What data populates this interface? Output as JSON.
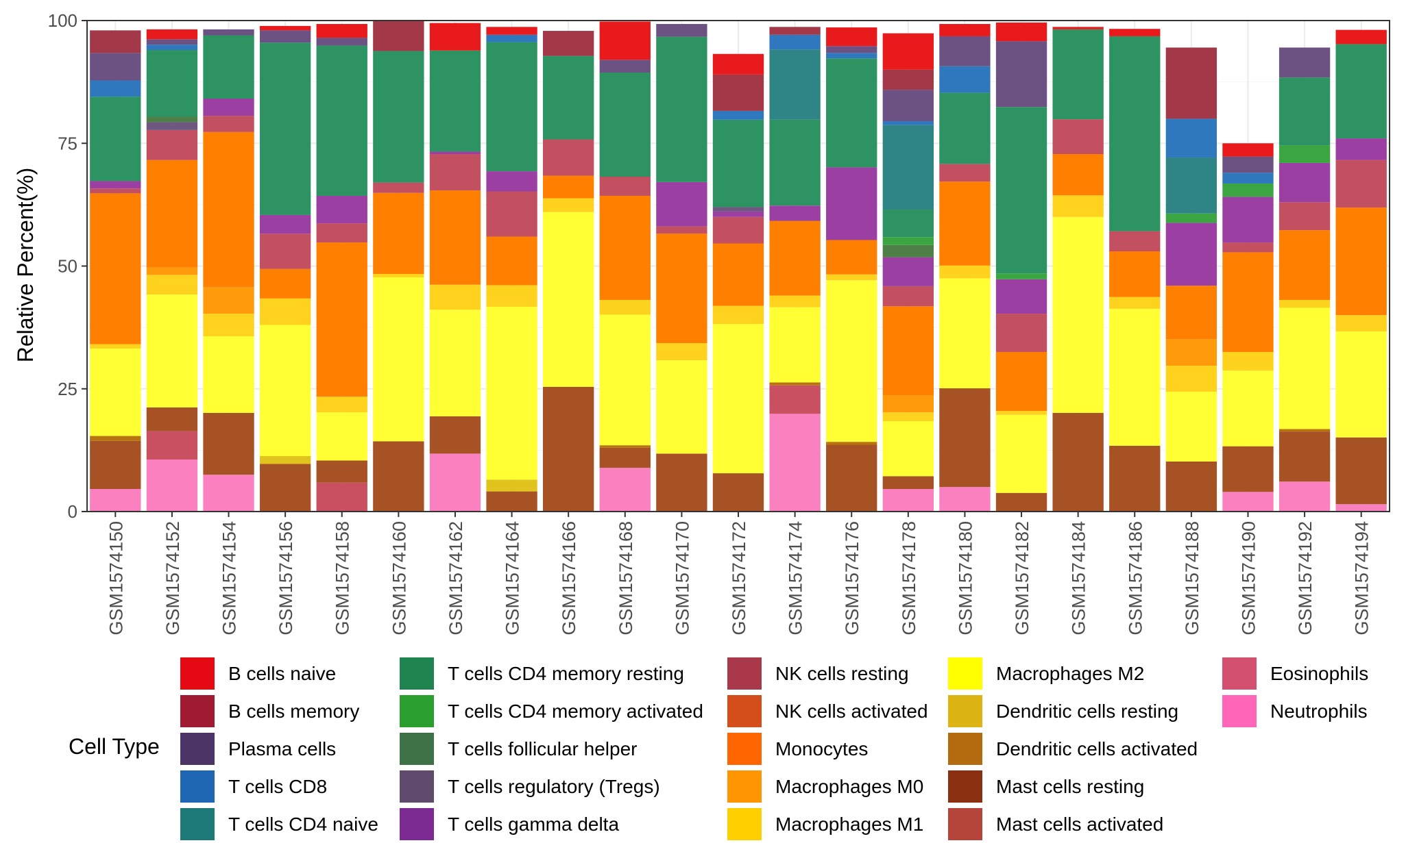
{
  "chart_data": {
    "type": "bar",
    "stacked": true,
    "ylabel": "Relative Percent(%)",
    "xlabel": "",
    "ylim": [
      0,
      100
    ],
    "yticks": [
      0,
      25,
      50,
      75,
      100
    ],
    "grid": true,
    "legend_title": "Cell Type",
    "legend_position": "bottom",
    "categories": [
      "GSM1574150",
      "GSM1574152",
      "GSM1574154",
      "GSM1574156",
      "GSM1574158",
      "GSM1574160",
      "GSM1574162",
      "GSM1574164",
      "GSM1574166",
      "GSM1574168",
      "GSM1574170",
      "GSM1574172",
      "GSM1574174",
      "GSM1574176",
      "GSM1574178",
      "GSM1574180",
      "GSM1574182",
      "GSM1574184",
      "GSM1574186",
      "GSM1574188",
      "GSM1574190",
      "GSM1574192",
      "GSM1574194"
    ],
    "series": [
      {
        "name": "Neutrophils",
        "color": "#fb80c0",
        "values": [
          4.6,
          10.6,
          7.5,
          0,
          0,
          0,
          11.8,
          0,
          0,
          8.9,
          0,
          0,
          19.9,
          0,
          4.6,
          5.0,
          0,
          0,
          0,
          0,
          4.0,
          6.1,
          1.5
        ]
      },
      {
        "name": "Eosinophils",
        "color": "#c85060",
        "values": [
          0,
          5.8,
          0,
          0,
          5.9,
          0,
          0,
          0,
          0,
          0,
          0,
          0,
          5.8,
          0,
          0,
          0,
          0,
          0,
          0,
          0,
          0,
          0,
          0
        ]
      },
      {
        "name": "Mast cells activated",
        "color": "#b8473c",
        "values": [
          0,
          0,
          0,
          0,
          0,
          0,
          0,
          0,
          0,
          0,
          0,
          0,
          0,
          0,
          0,
          0,
          0,
          0,
          0,
          0,
          0,
          0,
          0
        ]
      },
      {
        "name": "Mast cells resting",
        "color": "#a65224",
        "values": [
          9.8,
          4.8,
          12.6,
          9.7,
          4.5,
          14.3,
          7.6,
          4.1,
          25.4,
          4.1,
          11.8,
          7.8,
          0,
          13.6,
          2.6,
          20.1,
          3.8,
          20.1,
          13.4,
          10.2,
          9.3,
          10.2,
          13.6
        ]
      },
      {
        "name": "Dendritic cells activated",
        "color": "#b8730f",
        "values": [
          1.0,
          0,
          0,
          0,
          0,
          0,
          0,
          0,
          0,
          0.5,
          0,
          0,
          0.6,
          0.6,
          0,
          0,
          0,
          0,
          0,
          0,
          0,
          0.5,
          0
        ]
      },
      {
        "name": "Dendritic cells resting",
        "color": "#e1c31d",
        "values": [
          0,
          0,
          0,
          1.6,
          0,
          0,
          0,
          2.4,
          0,
          0,
          0,
          0,
          0,
          0,
          0,
          0,
          0,
          0,
          0,
          0,
          0,
          0,
          0
        ]
      },
      {
        "name": "Macrophages M2",
        "color": "#ffff33",
        "values": [
          17.8,
          23.0,
          15.6,
          26.7,
          9.8,
          33.4,
          21.7,
          35.2,
          35.6,
          26.6,
          19.0,
          30.4,
          15.3,
          32.9,
          11.2,
          22.4,
          15.9,
          39.9,
          27.9,
          14.2,
          15.4,
          24.7,
          21.6
        ]
      },
      {
        "name": "Macrophages M1",
        "color": "#ffd21e",
        "values": [
          0.9,
          4.0,
          4.6,
          5.4,
          3.2,
          0.7,
          5.1,
          4.4,
          2.8,
          3.0,
          3.5,
          3.7,
          2.4,
          1.2,
          1.8,
          2.6,
          0.8,
          4.4,
          2.4,
          5.3,
          3.8,
          1.6,
          3.3
        ]
      },
      {
        "name": "Macrophages M0",
        "color": "#ff9b0a",
        "values": [
          0,
          1.5,
          5.4,
          0,
          0,
          0,
          0,
          0,
          0,
          0,
          0,
          0,
          0,
          0,
          3.5,
          0,
          0,
          0,
          0,
          5.4,
          0,
          0,
          0
        ]
      },
      {
        "name": "Monocytes",
        "color": "#ff7f00",
        "values": [
          30.7,
          21.9,
          31.6,
          6.0,
          31.4,
          16.5,
          19.2,
          9.9,
          4.6,
          21.2,
          22.3,
          12.7,
          15.2,
          7.0,
          18.1,
          17.1,
          12.0,
          8.4,
          9.3,
          10.9,
          20.3,
          14.2,
          21.9
        ]
      },
      {
        "name": "NK cells activated",
        "color": "#d85a1e",
        "values": [
          0,
          0,
          0,
          0,
          0,
          0,
          0,
          0,
          0,
          0,
          0,
          0,
          0,
          0,
          0,
          0,
          0,
          0,
          0,
          0,
          0,
          0,
          0
        ]
      },
      {
        "name": "NK cells resting",
        "color": "#c25060",
        "values": [
          1.0,
          6.1,
          3.3,
          7.2,
          3.9,
          2.1,
          7.4,
          9.2,
          7.4,
          3.9,
          1.5,
          5.4,
          0,
          0,
          4.1,
          3.6,
          7.8,
          7.1,
          4.1,
          0,
          2.0,
          5.7,
          9.7
        ]
      },
      {
        "name": "T cells gamma delta",
        "color": "#9c3fa3",
        "values": [
          1.5,
          0,
          3.5,
          3.8,
          5.6,
          0,
          0.5,
          4.1,
          0,
          0,
          9.0,
          1.1,
          3.1,
          14.8,
          5.9,
          0,
          7.0,
          0,
          0,
          12.8,
          9.3,
          8.0,
          4.4
        ]
      },
      {
        "name": "T cells regulatory (Tregs)",
        "color": "#6e5882",
        "values": [
          0,
          1.6,
          0,
          0,
          0,
          0,
          0,
          0,
          0,
          0,
          0,
          0.9,
          0,
          0,
          0,
          0,
          0,
          0,
          0,
          0,
          0,
          0,
          0
        ]
      },
      {
        "name": "T cells follicular helper",
        "color": "#4d7f46",
        "values": [
          0,
          1.1,
          0,
          0,
          0,
          0,
          0,
          0,
          0,
          0,
          0,
          0,
          0,
          0,
          2.5,
          0,
          0,
          0,
          0,
          0,
          0,
          0,
          0
        ]
      },
      {
        "name": "T cells CD4 memory activated",
        "color": "#3aa541",
        "values": [
          0,
          0,
          0,
          0,
          0,
          0,
          0,
          0,
          0,
          0,
          0,
          0,
          0,
          0,
          1.6,
          0,
          1.2,
          0,
          0,
          1.9,
          2.7,
          3.6,
          0
        ]
      },
      {
        "name": "T cells CD4 memory resting",
        "color": "#2e9362",
        "values": [
          17.2,
          13.6,
          12.9,
          35.1,
          30.6,
          26.8,
          20.6,
          26.3,
          17.0,
          21.2,
          29.6,
          17.8,
          17.5,
          22.2,
          5.6,
          14.5,
          33.9,
          18.3,
          39.7,
          0,
          0,
          13.8,
          19.2
        ]
      },
      {
        "name": "T cells CD4 naive",
        "color": "#2f8585",
        "values": [
          0,
          0,
          0,
          0,
          0,
          0,
          0,
          0,
          0,
          0,
          0,
          0,
          14.3,
          0,
          17.2,
          0,
          0,
          0,
          0,
          11.4,
          0,
          0,
          0
        ]
      },
      {
        "name": "T cells CD8",
        "color": "#2f78bd",
        "values": [
          3.3,
          1.1,
          0,
          0,
          0,
          0,
          0,
          1.5,
          0,
          0,
          0,
          1.8,
          3.0,
          1.1,
          0.8,
          5.4,
          0,
          0,
          0,
          7.9,
          2.2,
          0,
          0
        ]
      },
      {
        "name": "Plasma cells",
        "color": "#6b5282",
        "values": [
          5.6,
          1.1,
          1.2,
          2.5,
          1.6,
          0,
          0,
          0,
          0,
          2.6,
          2.6,
          0,
          0,
          1.4,
          6.4,
          6.1,
          13.4,
          0,
          0,
          0,
          3.3,
          6.1,
          0
        ]
      },
      {
        "name": "B cells memory",
        "color": "#a23848",
        "values": [
          4.6,
          0,
          0,
          0,
          0,
          6.2,
          0,
          0,
          5.1,
          0,
          0,
          7.4,
          1.6,
          0,
          4.1,
          0,
          0,
          0,
          0,
          14.5,
          0,
          0,
          0
        ]
      },
      {
        "name": "B cells naive",
        "color": "#e81a1c",
        "values": [
          0,
          2.0,
          0,
          0.9,
          2.8,
          0,
          5.6,
          1.6,
          0,
          7.8,
          0,
          4.2,
          0,
          3.8,
          7.4,
          2.5,
          3.8,
          0.5,
          1.5,
          0,
          2.7,
          0,
          2.9
        ]
      }
    ]
  },
  "legend": {
    "title": "Cell Type",
    "columns": [
      [
        {
          "label": "B cells naive",
          "color": "#e50914"
        },
        {
          "label": "B cells memory",
          "color": "#a01b32"
        },
        {
          "label": "Plasma cells",
          "color": "#4a3566"
        },
        {
          "label": "T cells CD8",
          "color": "#1f66b3"
        },
        {
          "label": "T cells CD4 naive",
          "color": "#1e7a78"
        }
      ],
      [
        {
          "label": "T cells CD4 memory resting",
          "color": "#1f8450"
        },
        {
          "label": "T cells CD4 memory activated",
          "color": "#2a9e2e"
        },
        {
          "label": "T cells follicular helper",
          "color": "#3e7146"
        },
        {
          "label": "T cells regulatory (Tregs)",
          "color": "#5f4c6c"
        },
        {
          "label": "T cells gamma delta",
          "color": "#7a2a90"
        }
      ],
      [
        {
          "label": "NK cells resting",
          "color": "#a8384a"
        },
        {
          "label": "NK cells activated",
          "color": "#d44e1c"
        },
        {
          "label": "Monocytes",
          "color": "#ff6600"
        },
        {
          "label": "Macrophages M0",
          "color": "#ff9500"
        },
        {
          "label": "Macrophages M1",
          "color": "#ffd000"
        }
      ],
      [
        {
          "label": "Macrophages M2",
          "color": "#ffff00"
        },
        {
          "label": "Dendritic cells resting",
          "color": "#dcb414"
        },
        {
          "label": "Dendritic cells activated",
          "color": "#b46c10"
        },
        {
          "label": "Mast cells resting",
          "color": "#8a3010"
        },
        {
          "label": "Mast cells activated",
          "color": "#b5443a"
        }
      ],
      [
        {
          "label": "Eosinophils",
          "color": "#d45070"
        },
        {
          "label": "Neutrophils",
          "color": "#ff66b8"
        }
      ]
    ]
  }
}
